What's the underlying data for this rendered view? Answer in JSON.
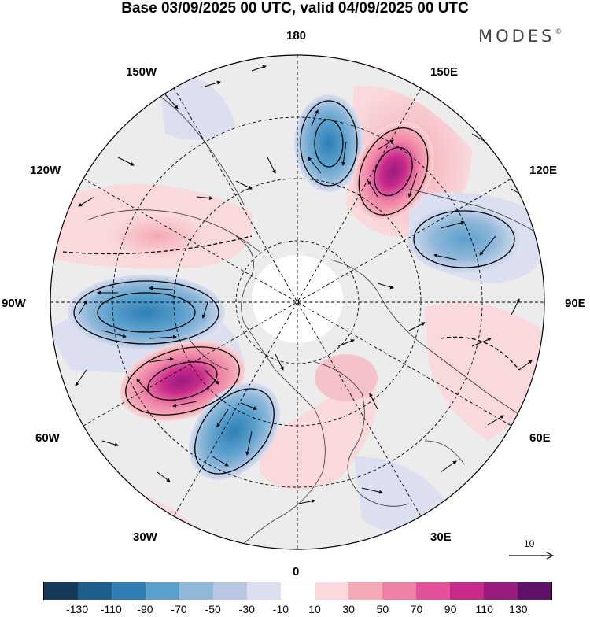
{
  "title": "Base 03/09/2025 00 UTC, valid 04/09/2025 00 UTC",
  "brand": {
    "name": "MODES",
    "mark": "©"
  },
  "longitude_labels": {
    "lon_180": "180",
    "lon_150e": "150E",
    "lon_120e": "120E",
    "lon_90e": "90E",
    "lon_60e": "60E",
    "lon_30e": "30E",
    "lon_0": "0",
    "lon_30w": "30W",
    "lon_60w": "60W",
    "lon_90w": "90W",
    "lon_120w": "120W",
    "lon_150w": "150W"
  },
  "vector_reference": {
    "value": "10"
  },
  "colorbar": {
    "colors": [
      "#153a5a",
      "#1f5f8b",
      "#2e7fb5",
      "#5aa0cc",
      "#8fb8da",
      "#b8c6e2",
      "#dcdff0",
      "#ffffff",
      "#f9d9db",
      "#f4aab5",
      "#ee80a6",
      "#e3509a",
      "#c82a8b",
      "#9b1a7e",
      "#5e1166"
    ],
    "labels": [
      "-130",
      "-110",
      "-90",
      "-70",
      "-50",
      "-30",
      "-10",
      "10",
      "30",
      "50",
      "70",
      "90",
      "110",
      "130"
    ]
  },
  "anomaly_colors": {
    "strong_negative": "#2e7fb5",
    "strong_positive": "#c82a8b",
    "weak_negative": "#dcdff0",
    "weak_positive": "#f9d9db"
  }
}
